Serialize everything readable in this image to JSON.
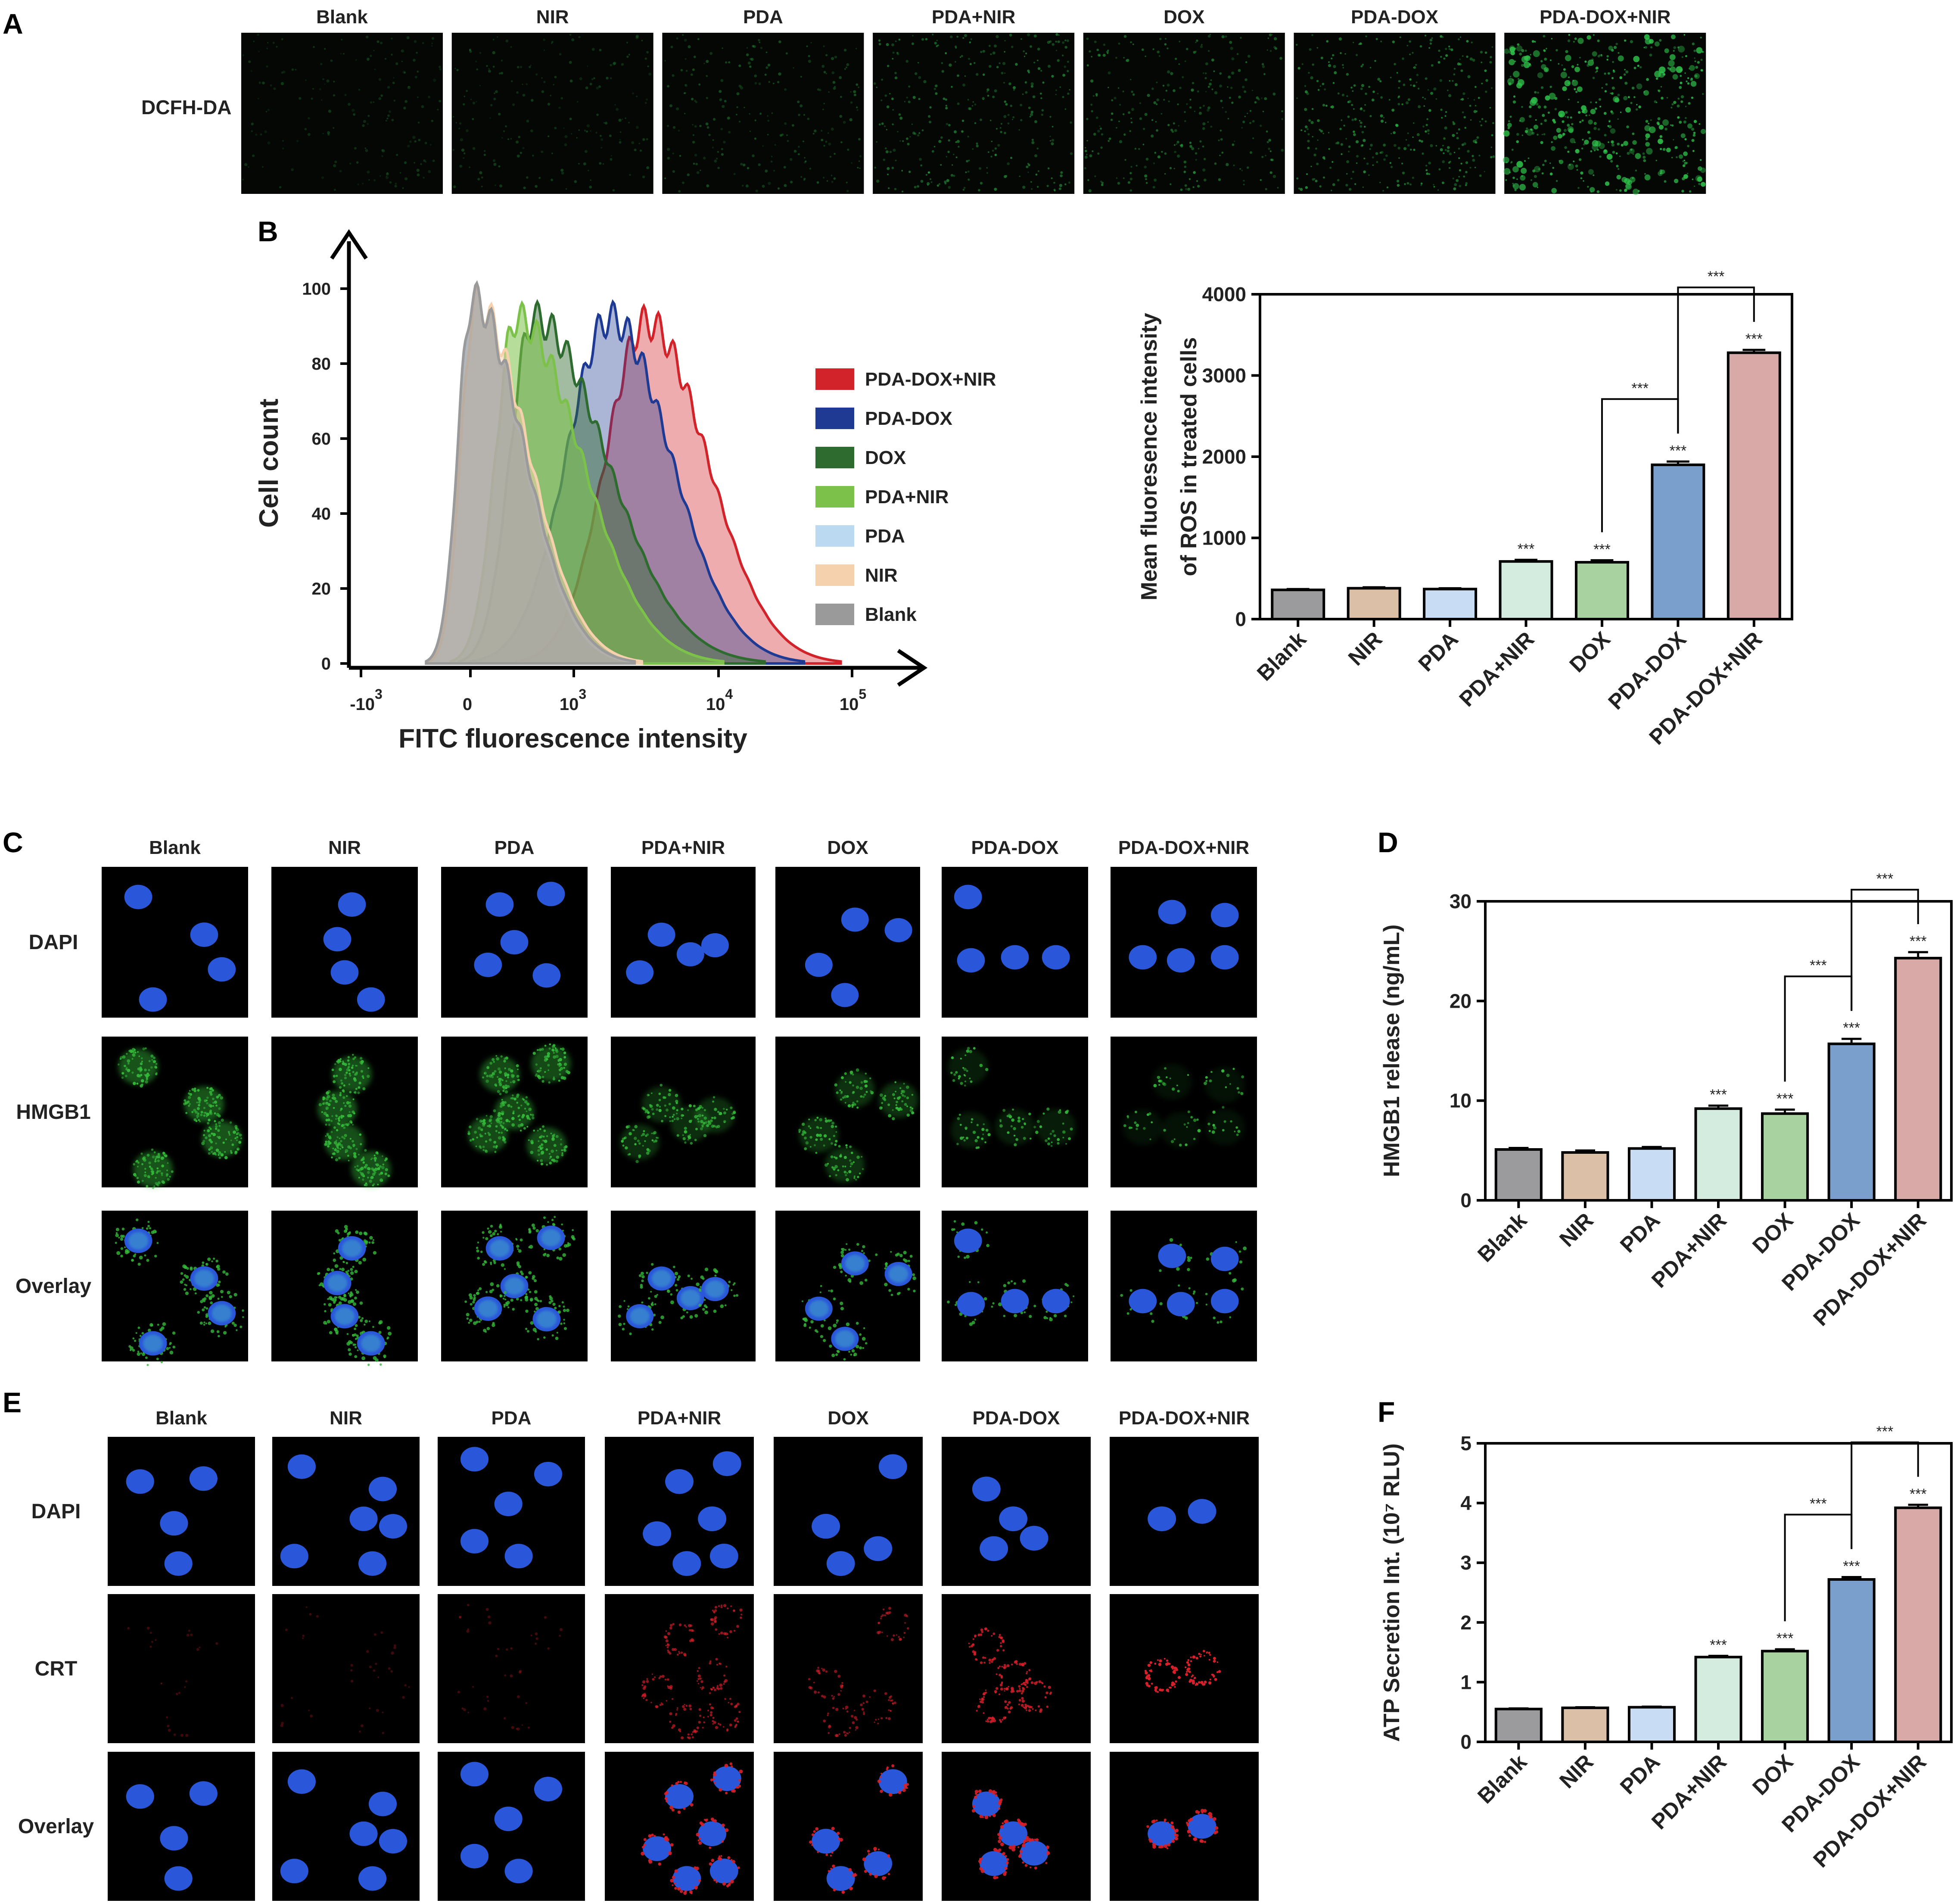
{
  "groups": [
    "Blank",
    "NIR",
    "PDA",
    "PDA+NIR",
    "DOX",
    "PDA-DOX",
    "PDA-DOX+NIR"
  ],
  "colors": {
    "bars": [
      "#9b9b9d",
      "#dcbfa7",
      "#c8dcf3",
      "#d4ebe0",
      "#a8d3a0",
      "#7a9fcc",
      "#d9a9a7"
    ],
    "nucleus": "#2a57d9",
    "hmgb1": "#34b83a",
    "crt": "#d8202a",
    "dcfh": "#2fc24a"
  },
  "panelA": {
    "letter": "A",
    "row_label": "DCFH-DA",
    "intensity": [
      0.15,
      0.2,
      0.3,
      0.55,
      0.5,
      0.7,
      1.0
    ]
  },
  "panelB": {
    "letter": "B",
    "histogram": {
      "ylabel": "Cell count",
      "xlabel": "FITC fluorescence intensity",
      "yticks": [
        "0",
        "20",
        "40",
        "60",
        "80",
        "100"
      ],
      "xticks": [
        {
          "base": "-10",
          "exp": "3"
        },
        {
          "base": "0",
          "exp": ""
        },
        {
          "base": "10",
          "exp": "3"
        },
        {
          "base": "10",
          "exp": "4"
        },
        {
          "base": "10",
          "exp": "5"
        }
      ],
      "legend": [
        {
          "label": "PDA-DOX+NIR",
          "color": "#d2232a"
        },
        {
          "label": "PDA-DOX",
          "color": "#1f3a93"
        },
        {
          "label": "DOX",
          "color": "#2e6b2f"
        },
        {
          "label": "PDA+NIR",
          "color": "#7cc24a"
        },
        {
          "label": "PDA",
          "color": "#bcd9f2"
        },
        {
          "label": "NIR",
          "color": "#f6d1ad"
        },
        {
          "label": "Blank",
          "color": "#9a9a9a"
        }
      ]
    }
  },
  "chart_data": [
    {
      "type": "area",
      "panel": "B-histogram",
      "xlabel": "FITC fluorescence intensity",
      "ylabel": "Cell count",
      "ylim": [
        0,
        100
      ],
      "series": [
        {
          "name": "Blank",
          "peak_log_x": 2.3,
          "peak_y": 97
        },
        {
          "name": "NIR",
          "peak_log_x": 2.32,
          "peak_y": 96
        },
        {
          "name": "PDA",
          "peak_log_x": 2.3,
          "peak_y": 97
        },
        {
          "name": "PDA+NIR",
          "peak_log_x": 2.6,
          "peak_y": 92
        },
        {
          "name": "DOX",
          "peak_log_x": 2.72,
          "peak_y": 92
        },
        {
          "name": "PDA-DOX",
          "peak_log_x": 3.25,
          "peak_y": 92
        },
        {
          "name": "PDA-DOX+NIR",
          "peak_log_x": 3.5,
          "peak_y": 91
        }
      ]
    },
    {
      "type": "bar",
      "panel": "B-bar",
      "categories": [
        "Blank",
        "NIR",
        "PDA",
        "PDA+NIR",
        "DOX",
        "PDA-DOX",
        "PDA-DOX+NIR"
      ],
      "values": [
        360,
        380,
        370,
        710,
        700,
        1900,
        3280
      ],
      "errors": [
        10,
        12,
        10,
        20,
        25,
        40,
        35
      ],
      "ylabel_lines": [
        "Mean fluoresence intensity",
        "of ROS in treated cells"
      ],
      "ylim": [
        0,
        4000
      ],
      "yticks": [
        0,
        1000,
        2000,
        3000,
        4000
      ],
      "sig_labels": [
        "",
        "",
        "",
        "***",
        "***",
        "***",
        "***"
      ],
      "brackets": [
        {
          "from": 4,
          "to": 5,
          "label": "***"
        },
        {
          "from": 5,
          "to": 6,
          "label": "***"
        }
      ]
    },
    {
      "type": "bar",
      "panel": "D",
      "categories": [
        "Blank",
        "NIR",
        "PDA",
        "PDA+NIR",
        "DOX",
        "PDA-DOX",
        "PDA-DOX+NIR"
      ],
      "values": [
        5.1,
        4.8,
        5.2,
        9.2,
        8.7,
        15.7,
        24.3
      ],
      "errors": [
        0.15,
        0.2,
        0.15,
        0.3,
        0.4,
        0.5,
        0.6
      ],
      "ylabel_lines": [
        "HMGB1 release (ng/mL)"
      ],
      "ylim": [
        0,
        30
      ],
      "yticks": [
        0,
        10,
        20,
        30
      ],
      "sig_labels": [
        "",
        "",
        "",
        "***",
        "***",
        "***",
        "***"
      ],
      "brackets": [
        {
          "from": 4,
          "to": 5,
          "label": "***"
        },
        {
          "from": 5,
          "to": 6,
          "label": "***"
        }
      ]
    },
    {
      "type": "bar",
      "panel": "F",
      "categories": [
        "Blank",
        "NIR",
        "PDA",
        "PDA+NIR",
        "DOX",
        "PDA-DOX",
        "PDA-DOX+NIR"
      ],
      "values": [
        0.55,
        0.57,
        0.58,
        1.42,
        1.52,
        2.72,
        3.92
      ],
      "errors": [
        0.01,
        0.01,
        0.01,
        0.02,
        0.03,
        0.04,
        0.05
      ],
      "ylabel_lines": [
        "ATP Secretion Int. (10⁷ RLU)"
      ],
      "ylim": [
        0,
        5
      ],
      "yticks": [
        0,
        1,
        2,
        3,
        4,
        5
      ],
      "sig_labels": [
        "",
        "",
        "",
        "***",
        "***",
        "***",
        "***"
      ],
      "brackets": [
        {
          "from": 4,
          "to": 5,
          "label": "***"
        },
        {
          "from": 5,
          "to": 6,
          "label": "***"
        }
      ]
    }
  ],
  "panelC": {
    "letter": "C",
    "rows": [
      "DAPI",
      "HMGB1",
      "Overlay"
    ],
    "hmgb1_intensity": [
      1.0,
      0.95,
      0.9,
      0.55,
      0.6,
      0.35,
      0.2
    ],
    "cells": [
      [
        [
          0.25,
          0.2
        ],
        [
          0.7,
          0.45
        ],
        [
          0.82,
          0.68
        ],
        [
          0.35,
          0.88
        ]
      ],
      [
        [
          0.55,
          0.25
        ],
        [
          0.45,
          0.48
        ],
        [
          0.5,
          0.7
        ],
        [
          0.68,
          0.88
        ]
      ],
      [
        [
          0.4,
          0.25
        ],
        [
          0.75,
          0.18
        ],
        [
          0.5,
          0.5
        ],
        [
          0.32,
          0.65
        ],
        [
          0.72,
          0.72
        ]
      ],
      [
        [
          0.35,
          0.45
        ],
        [
          0.55,
          0.58
        ],
        [
          0.72,
          0.52
        ],
        [
          0.2,
          0.7
        ]
      ],
      [
        [
          0.55,
          0.35
        ],
        [
          0.85,
          0.42
        ],
        [
          0.3,
          0.65
        ],
        [
          0.48,
          0.85
        ]
      ],
      [
        [
          0.18,
          0.2
        ],
        [
          0.2,
          0.62
        ],
        [
          0.5,
          0.6
        ],
        [
          0.78,
          0.6
        ]
      ],
      [
        [
          0.42,
          0.3
        ],
        [
          0.78,
          0.32
        ],
        [
          0.22,
          0.6
        ],
        [
          0.48,
          0.62
        ],
        [
          0.78,
          0.6
        ]
      ]
    ]
  },
  "panelD": {
    "letter": "D"
  },
  "panelE": {
    "letter": "E",
    "rows": [
      "DAPI",
      "CRT",
      "Overlay"
    ],
    "crt_intensity": [
      0.05,
      0.05,
      0.08,
      0.55,
      0.45,
      0.75,
      1.0
    ],
    "cells": [
      [
        [
          0.22,
          0.3
        ],
        [
          0.65,
          0.28
        ],
        [
          0.45,
          0.58
        ],
        [
          0.48,
          0.85
        ]
      ],
      [
        [
          0.2,
          0.2
        ],
        [
          0.75,
          0.35
        ],
        [
          0.62,
          0.55
        ],
        [
          0.82,
          0.6
        ],
        [
          0.15,
          0.8
        ],
        [
          0.68,
          0.85
        ]
      ],
      [
        [
          0.25,
          0.15
        ],
        [
          0.75,
          0.25
        ],
        [
          0.48,
          0.45
        ],
        [
          0.25,
          0.7
        ],
        [
          0.55,
          0.8
        ]
      ],
      [
        [
          0.5,
          0.3
        ],
        [
          0.82,
          0.18
        ],
        [
          0.35,
          0.65
        ],
        [
          0.72,
          0.55
        ],
        [
          0.55,
          0.85
        ],
        [
          0.8,
          0.8
        ]
      ],
      [
        [
          0.8,
          0.2
        ],
        [
          0.35,
          0.6
        ],
        [
          0.7,
          0.75
        ],
        [
          0.45,
          0.85
        ]
      ],
      [
        [
          0.3,
          0.35
        ],
        [
          0.48,
          0.55
        ],
        [
          0.62,
          0.68
        ],
        [
          0.35,
          0.75
        ]
      ],
      [
        [
          0.35,
          0.55
        ],
        [
          0.62,
          0.5
        ]
      ]
    ]
  },
  "panelF": {
    "letter": "F"
  }
}
